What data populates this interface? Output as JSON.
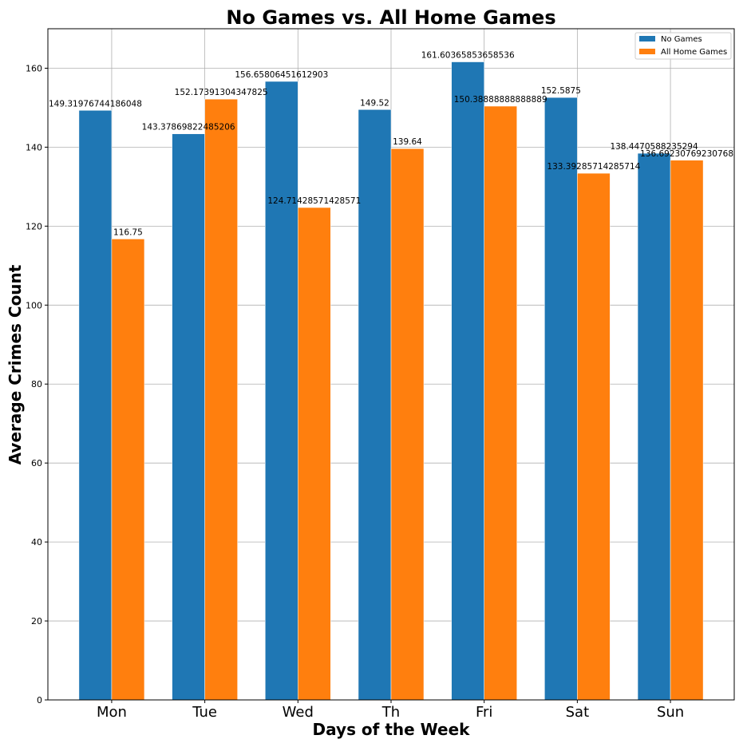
{
  "chart_data": {
    "type": "bar",
    "title": "No Games vs. All Home Games",
    "xlabel": "Days of the Week",
    "ylabel": "Average Crimes Count",
    "categories": [
      "Mon",
      "Tue",
      "Wed",
      "Th",
      "Fri",
      "Sat",
      "Sun"
    ],
    "series": [
      {
        "name": "No Games",
        "color": "#1f77b4",
        "values": [
          149.31976744186048,
          143.37869822485206,
          156.65806451612903,
          149.52,
          161.60365853658536,
          152.5875,
          138.4470588235294
        ],
        "labels": [
          "149.31976744186048",
          "143.37869822485206",
          "156.65806451612903",
          "149.52",
          "161.60365853658536",
          "152.5875",
          "138.4470588235294"
        ]
      },
      {
        "name": "All Home Games",
        "color": "#ff7f0e",
        "values": [
          116.75,
          152.17391304347825,
          124.71428571428571,
          139.64,
          150.38888888888889,
          133.39285714285714,
          136.69230769230768
        ],
        "labels": [
          "116.75",
          "152.17391304347825",
          "124.71428571428571",
          "139.64",
          "150.38888888888889",
          "133.39285714285714",
          "136.69230769230768"
        ]
      }
    ],
    "ylim": [
      0,
      170
    ],
    "yticks": [
      0,
      20,
      40,
      60,
      80,
      100,
      120,
      140,
      160
    ],
    "grid": true,
    "legend": "top-right"
  }
}
